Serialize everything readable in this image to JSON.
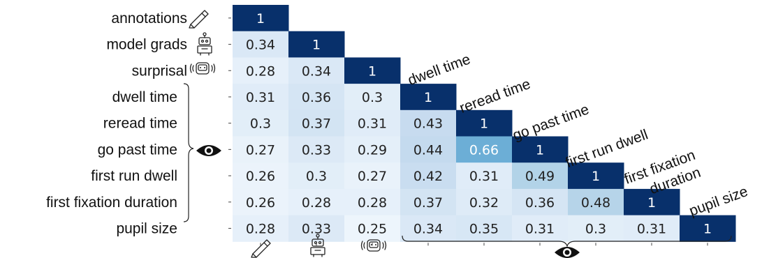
{
  "chart_data": {
    "type": "heatmap",
    "rows": [
      "annotations",
      "model grads",
      "surprisal",
      "dwell time",
      "reread time",
      "go past time",
      "first run dwell",
      "first fixation duration",
      "pupil size"
    ],
    "diagonal_labels": [
      "dwell time",
      "reread time",
      "go past time",
      "first run dwell",
      "first fixation\nduration",
      "pupil size"
    ],
    "values": [
      [
        1
      ],
      [
        0.34,
        1
      ],
      [
        0.28,
        0.34,
        1
      ],
      [
        0.31,
        0.36,
        0.3,
        1
      ],
      [
        0.3,
        0.37,
        0.31,
        0.43,
        1
      ],
      [
        0.27,
        0.33,
        0.29,
        0.44,
        0.66,
        1
      ],
      [
        0.26,
        0.3,
        0.27,
        0.42,
        0.31,
        0.49,
        1
      ],
      [
        0.26,
        0.28,
        0.28,
        0.37,
        0.32,
        0.36,
        0.48,
        1
      ],
      [
        0.28,
        0.33,
        0.25,
        0.34,
        0.35,
        0.31,
        0.3,
        0.31,
        1
      ]
    ],
    "display": [
      [
        "1"
      ],
      [
        "0.34",
        "1"
      ],
      [
        "0.28",
        "0.34",
        "1"
      ],
      [
        "0.31",
        "0.36",
        "0.3",
        "1"
      ],
      [
        "0.3",
        "0.37",
        "0.31",
        "0.43",
        "1"
      ],
      [
        "0.27",
        "0.33",
        "0.29",
        "0.44",
        "0.66",
        "1"
      ],
      [
        "0.26",
        "0.3",
        "0.27",
        "0.42",
        "0.31",
        "0.49",
        "1"
      ],
      [
        "0.26",
        "0.28",
        "0.28",
        "0.37",
        "0.32",
        "0.36",
        "0.48",
        "1"
      ],
      [
        "0.28",
        "0.33",
        "0.25",
        "0.34",
        "0.35",
        "0.31",
        "0.3",
        "0.31",
        "1"
      ]
    ],
    "colormap": "Blues",
    "value_range": [
      0.25,
      1
    ],
    "row_icons": [
      "highlighter-icon",
      "robot-icon",
      "robot-speaking-icon"
    ],
    "column_icons": [
      "highlighter-icon",
      "robot-icon",
      "robot-speaking-icon"
    ],
    "group_icon": "eye-icon",
    "colors": {
      "dark": "#08306b",
      "light": "#f7fbff",
      "text_dark": "#222222",
      "text_light": "#ffffff"
    }
  }
}
